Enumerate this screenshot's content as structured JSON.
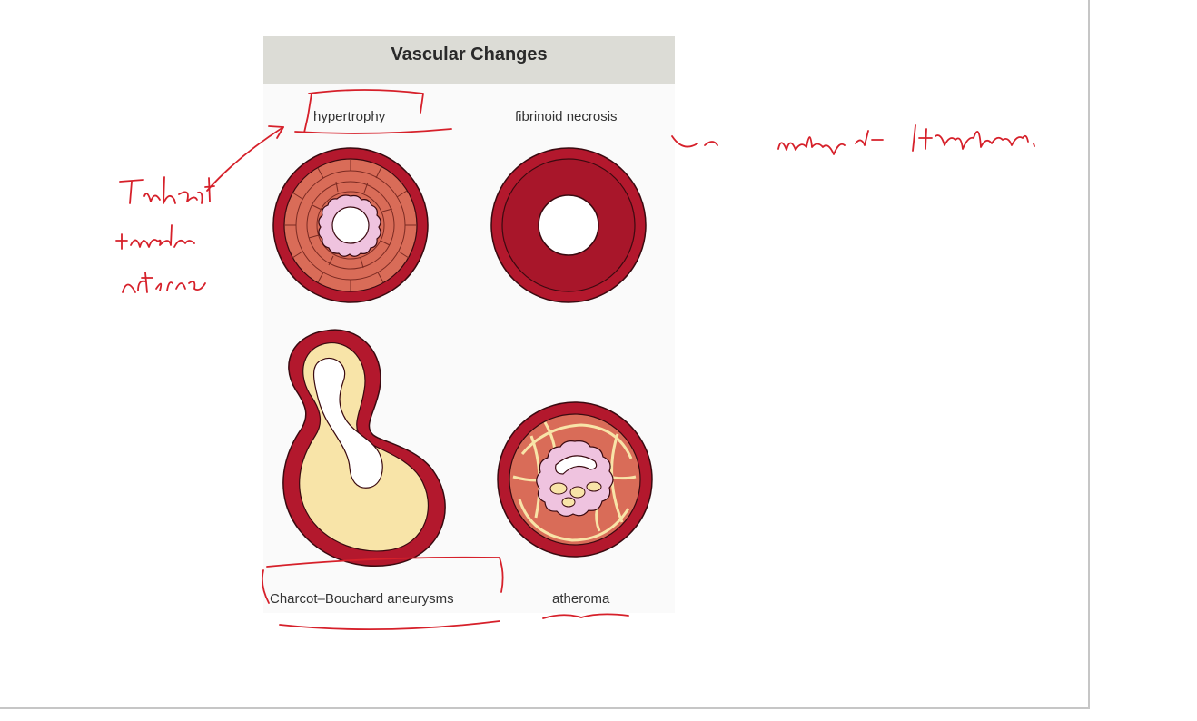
{
  "figure": {
    "title": "Vascular Changes",
    "panels": [
      {
        "id": "hypertrophy",
        "label": "hypertrophy"
      },
      {
        "id": "fibrinoid",
        "label": "fibrinoid necrosis"
      },
      {
        "id": "charcot",
        "label": "Charcot–Bouchard aneurysms"
      },
      {
        "id": "atheroma",
        "label": "atheroma"
      }
    ]
  },
  "colors": {
    "vessel_outer": "#b3182d",
    "media": "#d96c58",
    "intima": "#efc3df",
    "aneurysm_fill": "#f8e4a8",
    "annotation_ink": "#d6202a",
    "header_bg": "#dcdcd6"
  }
}
